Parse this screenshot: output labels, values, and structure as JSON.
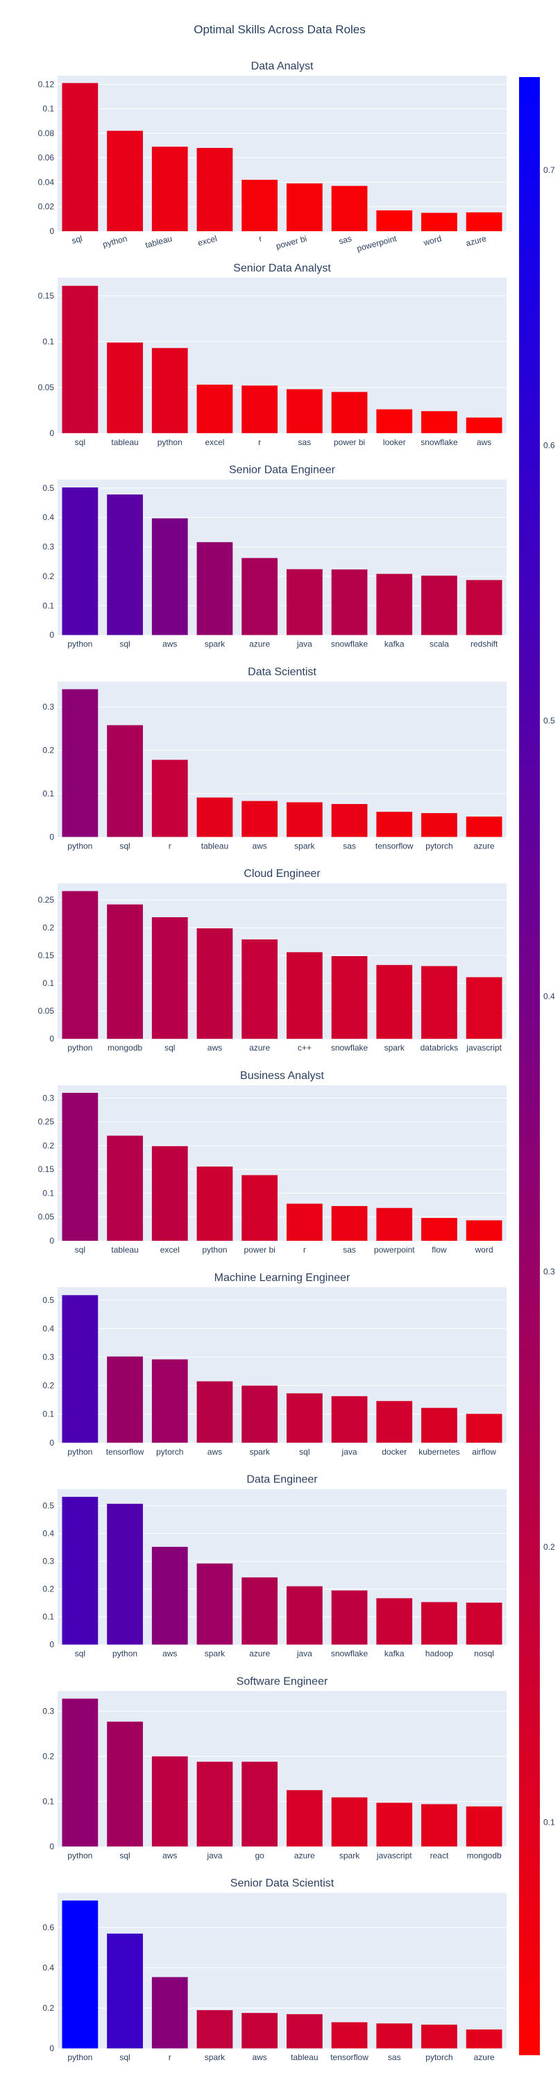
{
  "title": "Optimal Skills Across Data Roles",
  "colorscale": {
    "low": "#ff0000",
    "high": "#0000ff",
    "cmin": 0.0154,
    "cmax": 0.7338
  },
  "colorbar": {
    "ticks": [
      "0.1",
      "0.2",
      "0.3",
      "0.4",
      "0.5",
      "0.6",
      "0.7"
    ],
    "tickvals": [
      0.1,
      0.2,
      0.3,
      0.4,
      0.5,
      0.6,
      0.7
    ]
  },
  "chart_data": [
    {
      "type": "bar",
      "title": "Data Analyst",
      "categories": [
        "sql",
        "python",
        "tableau",
        "excel",
        "r",
        "power bi",
        "sas",
        "powerpoint",
        "word",
        "azure"
      ],
      "values": [
        0.121,
        0.082,
        0.069,
        0.068,
        0.042,
        0.039,
        0.037,
        0.017,
        0.015,
        0.0154
      ],
      "yticks": [
        "0",
        "0.02",
        "0.04",
        "0.06",
        "0.08",
        "0.1",
        "0.12"
      ],
      "ytickvals": [
        0,
        0.02,
        0.04,
        0.06,
        0.08,
        0.1,
        0.12
      ],
      "ylim": [
        0,
        0.127
      ],
      "rotated_labels": true
    },
    {
      "type": "bar",
      "title": "Senior Data Analyst",
      "categories": [
        "sql",
        "tableau",
        "python",
        "excel",
        "r",
        "sas",
        "power bi",
        "looker",
        "snowflake",
        "aws"
      ],
      "values": [
        0.161,
        0.099,
        0.093,
        0.053,
        0.052,
        0.048,
        0.045,
        0.026,
        0.024,
        0.017
      ],
      "yticks": [
        "0",
        "0.05",
        "0.1",
        "0.15"
      ],
      "ytickvals": [
        0,
        0.05,
        0.1,
        0.15
      ],
      "ylim": [
        0,
        0.17
      ],
      "rotated_labels": false
    },
    {
      "type": "bar",
      "title": "Senior Data Engineer",
      "categories": [
        "python",
        "sql",
        "aws",
        "spark",
        "azure",
        "java",
        "snowflake",
        "kafka",
        "scala",
        "redshift"
      ],
      "values": [
        0.502,
        0.478,
        0.397,
        0.316,
        0.262,
        0.224,
        0.223,
        0.208,
        0.202,
        0.187
      ],
      "yticks": [
        "0",
        "0.1",
        "0.2",
        "0.3",
        "0.4",
        "0.5"
      ],
      "ytickvals": [
        0,
        0.1,
        0.2,
        0.3,
        0.4,
        0.5
      ],
      "ylim": [
        0,
        0.529
      ],
      "rotated_labels": false
    },
    {
      "type": "bar",
      "title": "Data Scientist",
      "categories": [
        "python",
        "sql",
        "r",
        "tableau",
        "aws",
        "spark",
        "sas",
        "tensorflow",
        "pytorch",
        "azure"
      ],
      "values": [
        0.341,
        0.258,
        0.178,
        0.091,
        0.083,
        0.08,
        0.076,
        0.058,
        0.055,
        0.047
      ],
      "yticks": [
        "0",
        "0.1",
        "0.2",
        "0.3"
      ],
      "ytickvals": [
        0,
        0.1,
        0.2,
        0.3
      ],
      "ylim": [
        0,
        0.359
      ],
      "rotated_labels": false
    },
    {
      "type": "bar",
      "title": "Cloud Engineer",
      "categories": [
        "python",
        "mongodb",
        "sql",
        "aws",
        "azure",
        "c++",
        "snowflake",
        "spark",
        "databricks",
        "javascript"
      ],
      "values": [
        0.266,
        0.242,
        0.219,
        0.199,
        0.179,
        0.156,
        0.149,
        0.133,
        0.131,
        0.111
      ],
      "yticks": [
        "0",
        "0.05",
        "0.1",
        "0.15",
        "0.2",
        "0.25"
      ],
      "ytickvals": [
        0,
        0.05,
        0.1,
        0.15,
        0.2,
        0.25
      ],
      "ylim": [
        0,
        0.28
      ],
      "rotated_labels": false
    },
    {
      "type": "bar",
      "title": "Business Analyst",
      "categories": [
        "sql",
        "tableau",
        "excel",
        "python",
        "power bi",
        "r",
        "sas",
        "powerpoint",
        "flow",
        "word"
      ],
      "values": [
        0.311,
        0.221,
        0.199,
        0.156,
        0.138,
        0.078,
        0.073,
        0.069,
        0.048,
        0.043
      ],
      "yticks": [
        "0",
        "0.05",
        "0.1",
        "0.15",
        "0.2",
        "0.25",
        "0.3"
      ],
      "ytickvals": [
        0,
        0.05,
        0.1,
        0.15,
        0.2,
        0.25,
        0.3
      ],
      "ylim": [
        0,
        0.327
      ],
      "rotated_labels": false
    },
    {
      "type": "bar",
      "title": "Machine Learning Engineer",
      "categories": [
        "python",
        "tensorflow",
        "pytorch",
        "aws",
        "spark",
        "sql",
        "java",
        "docker",
        "kubernetes",
        "airflow"
      ],
      "values": [
        0.517,
        0.302,
        0.292,
        0.215,
        0.2,
        0.173,
        0.163,
        0.146,
        0.122,
        0.101
      ],
      "yticks": [
        "0",
        "0.1",
        "0.2",
        "0.3",
        "0.4",
        "0.5"
      ],
      "ytickvals": [
        0,
        0.1,
        0.2,
        0.3,
        0.4,
        0.5
      ],
      "ylim": [
        0,
        0.545
      ],
      "rotated_labels": false
    },
    {
      "type": "bar",
      "title": "Data Engineer",
      "categories": [
        "sql",
        "python",
        "aws",
        "spark",
        "azure",
        "java",
        "snowflake",
        "kafka",
        "hadoop",
        "nosql"
      ],
      "values": [
        0.532,
        0.507,
        0.352,
        0.292,
        0.242,
        0.21,
        0.195,
        0.167,
        0.153,
        0.151
      ],
      "yticks": [
        "0",
        "0.1",
        "0.2",
        "0.3",
        "0.4",
        "0.5"
      ],
      "ytickvals": [
        0,
        0.1,
        0.2,
        0.3,
        0.4,
        0.5
      ],
      "ylim": [
        0,
        0.56
      ],
      "rotated_labels": false
    },
    {
      "type": "bar",
      "title": "Software Engineer",
      "categories": [
        "python",
        "sql",
        "aws",
        "java",
        "go",
        "azure",
        "spark",
        "javascript",
        "react",
        "mongodb"
      ],
      "values": [
        0.328,
        0.277,
        0.2,
        0.188,
        0.188,
        0.125,
        0.109,
        0.097,
        0.094,
        0.089
      ],
      "yticks": [
        "0",
        "0.1",
        "0.2",
        "0.3"
      ],
      "ytickvals": [
        0,
        0.1,
        0.2,
        0.3
      ],
      "ylim": [
        0,
        0.345
      ],
      "rotated_labels": false
    },
    {
      "type": "bar",
      "title": "Senior Data Scientist",
      "categories": [
        "python",
        "sql",
        "r",
        "spark",
        "aws",
        "tableau",
        "tensorflow",
        "sas",
        "pytorch",
        "azure"
      ],
      "values": [
        0.734,
        0.57,
        0.354,
        0.19,
        0.176,
        0.17,
        0.13,
        0.124,
        0.118,
        0.094
      ],
      "yticks": [
        "0",
        "0.2",
        "0.4",
        "0.6"
      ],
      "ytickvals": [
        0,
        0.2,
        0.4,
        0.6
      ],
      "ylim": [
        0,
        0.772
      ],
      "rotated_labels": false
    }
  ]
}
